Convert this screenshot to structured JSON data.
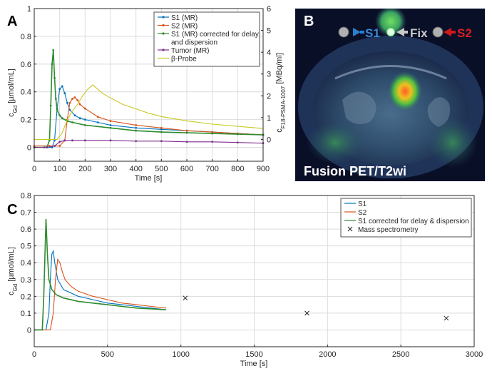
{
  "panels": {
    "A": {
      "letter": "A"
    },
    "B": {
      "letter": "B",
      "caption": "Fusion PET/T2wi",
      "markers": {
        "s1": "S1",
        "fix": "Fix",
        "s2": "S2"
      }
    },
    "C": {
      "letter": "C"
    }
  },
  "colors": {
    "s1": "#0072BD",
    "s2": "#D95319",
    "corrected": "#2E8B2E",
    "tumor": "#7E2F8E",
    "probe": "#C8C820",
    "mass": "#262626",
    "grid": "#dcdcdc",
    "axis": "#262626"
  },
  "chart_data": [
    {
      "id": "A",
      "type": "line",
      "xlabel": "Time [s]",
      "ylabel_main": "c",
      "ylabel_sub": "Gd",
      "ylabel_unit": " [µmol/mL]",
      "y2label_main": "c",
      "y2label_sub": "F18-PSMA-1007",
      "y2label_unit": " [MBq/ml]",
      "xlim": [
        0,
        900
      ],
      "ylim": [
        -0.1,
        1
      ],
      "y2lim": [
        -1,
        6
      ],
      "xticks": [
        0,
        100,
        200,
        300,
        400,
        500,
        600,
        700,
        800,
        900
      ],
      "yticks": [
        0,
        0.2,
        0.4,
        0.6,
        0.8,
        1
      ],
      "y2ticks": [
        0,
        1,
        2,
        3,
        4,
        5,
        6
      ],
      "grid": true,
      "legend_position": "top-right",
      "series": [
        {
          "key": "s1",
          "name": "S1 (MR)",
          "axis": "left",
          "marker": "dot",
          "x": [
            0,
            40,
            70,
            80,
            90,
            100,
            110,
            120,
            130,
            140,
            160,
            180,
            200,
            250,
            300,
            400,
            500,
            600,
            700,
            800,
            900
          ],
          "y": [
            0,
            0,
            0,
            0.05,
            0.28,
            0.42,
            0.44,
            0.39,
            0.32,
            0.27,
            0.23,
            0.21,
            0.2,
            0.18,
            0.16,
            0.14,
            0.13,
            0.12,
            0.11,
            0.1,
            0.09
          ]
        },
        {
          "key": "s2",
          "name": "S2 (MR)",
          "axis": "left",
          "marker": "dot",
          "x": [
            0,
            60,
            100,
            120,
            130,
            140,
            150,
            160,
            170,
            180,
            200,
            250,
            300,
            400,
            500,
            600,
            700,
            800,
            900
          ],
          "y": [
            0.01,
            0.01,
            0.01,
            0.05,
            0.2,
            0.32,
            0.35,
            0.36,
            0.34,
            0.31,
            0.28,
            0.22,
            0.19,
            0.16,
            0.14,
            0.12,
            0.11,
            0.1,
            0.09
          ]
        },
        {
          "key": "corrected",
          "name": "S1 (MR) corrected for delay",
          "name_line2": "and dispersion",
          "axis": "left",
          "marker": "dot",
          "x": [
            0,
            50,
            60,
            65,
            70,
            75,
            80,
            85,
            90,
            100,
            110,
            130,
            150,
            200,
            300,
            400,
            500,
            600,
            700,
            800,
            900
          ],
          "y": [
            0,
            0,
            0.05,
            0.3,
            0.6,
            0.7,
            0.5,
            0.35,
            0.27,
            0.23,
            0.21,
            0.19,
            0.18,
            0.16,
            0.14,
            0.12,
            0.11,
            0.105,
            0.1,
            0.095,
            0.09
          ]
        },
        {
          "key": "tumor",
          "name": "Tumor (MR)",
          "axis": "left",
          "marker": "dot",
          "x": [
            0,
            50,
            80,
            100,
            120,
            150,
            200,
            300,
            400,
            500,
            600,
            700,
            800,
            900
          ],
          "y": [
            0,
            0,
            0.01,
            0.04,
            0.05,
            0.05,
            0.05,
            0.05,
            0.045,
            0.045,
            0.04,
            0.04,
            0.035,
            0.03
          ]
        },
        {
          "key": "probe",
          "name": "β-Probe",
          "axis": "right",
          "x": [
            0,
            60,
            90,
            110,
            130,
            150,
            170,
            190,
            210,
            230,
            250,
            270,
            300,
            350,
            400,
            450,
            500,
            550,
            600,
            700,
            800,
            900
          ],
          "y": [
            0,
            0,
            0,
            0.3,
            0.9,
            1.3,
            1.6,
            2.0,
            2.3,
            2.5,
            2.3,
            2.1,
            1.9,
            1.6,
            1.4,
            1.2,
            1.05,
            0.95,
            0.85,
            0.7,
            0.6,
            0.5
          ]
        }
      ]
    },
    {
      "id": "C",
      "type": "line",
      "xlabel": "Time [s]",
      "ylabel_main": "c",
      "ylabel_sub": "Gd",
      "ylabel_unit": " [µmol/mL]",
      "xlim": [
        0,
        3000
      ],
      "ylim": [
        -0.1,
        0.8
      ],
      "xticks": [
        0,
        500,
        1000,
        1500,
        2000,
        2500,
        3000
      ],
      "yticks": [
        0,
        0.1,
        0.2,
        0.3,
        0.4,
        0.5,
        0.6,
        0.7,
        0.8
      ],
      "grid": true,
      "legend_position": "top-right",
      "series": [
        {
          "key": "s1",
          "name": "S1",
          "x": [
            0,
            80,
            100,
            110,
            120,
            130,
            140,
            160,
            200,
            300,
            400,
            500,
            600,
            700,
            800,
            900
          ],
          "y": [
            0,
            0,
            0.1,
            0.3,
            0.45,
            0.47,
            0.4,
            0.3,
            0.24,
            0.2,
            0.18,
            0.16,
            0.15,
            0.14,
            0.13,
            0.12
          ]
        },
        {
          "key": "s2",
          "name": "S2",
          "x": [
            0,
            110,
            130,
            145,
            160,
            175,
            190,
            210,
            250,
            300,
            400,
            500,
            600,
            700,
            800,
            900
          ],
          "y": [
            0,
            0,
            0.1,
            0.3,
            0.42,
            0.4,
            0.35,
            0.3,
            0.26,
            0.23,
            0.2,
            0.18,
            0.16,
            0.15,
            0.14,
            0.13
          ]
        },
        {
          "key": "corrected",
          "name": "S1 corrected for delay & dispersion",
          "x": [
            0,
            55,
            65,
            75,
            80,
            90,
            100,
            120,
            150,
            200,
            300,
            400,
            500,
            600,
            700,
            800,
            900
          ],
          "y": [
            0,
            0,
            0.2,
            0.5,
            0.66,
            0.45,
            0.3,
            0.24,
            0.21,
            0.19,
            0.17,
            0.16,
            0.15,
            0.14,
            0.13,
            0.125,
            0.12
          ]
        },
        {
          "key": "mass",
          "name": "Mass spectrometry",
          "marker": "x",
          "line": false,
          "x": [
            1030,
            1860,
            2810
          ],
          "y": [
            0.19,
            0.1,
            0.07
          ]
        }
      ]
    }
  ]
}
